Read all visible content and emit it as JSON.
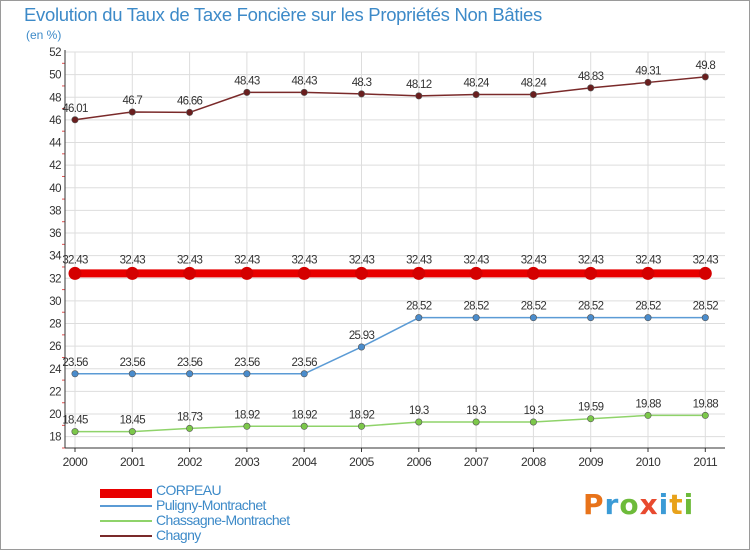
{
  "title": "Evolution du Taux de Taxe Foncière sur les Propriétés Non Bâties",
  "unit": "(en %)",
  "logo": {
    "text": "Proxiti",
    "colors": [
      "#e8731a",
      "#3b9bd6",
      "#6dbb3a",
      "#e84a2f",
      "#3b9bd6",
      "#e8a21a",
      "#6dbb3a"
    ]
  },
  "chart_data": {
    "type": "line",
    "title": "Evolution du Taux de Taxe Foncière sur les Propriétés Non Bâties",
    "ylabel": "(en %)",
    "xlabel": "",
    "x": [
      "2000",
      "2001",
      "2002",
      "2003",
      "2004",
      "2005",
      "2006",
      "2007",
      "2008",
      "2009",
      "2010",
      "2011"
    ],
    "ylim": [
      17,
      52
    ],
    "yticks": [
      18,
      20,
      22,
      24,
      26,
      28,
      30,
      32,
      34,
      36,
      38,
      40,
      42,
      44,
      46,
      48,
      50,
      52
    ],
    "grid": true,
    "legend_position": "bottom-left",
    "series": [
      {
        "name": "CORPEAU",
        "color": "#e80000",
        "values": [
          32.43,
          32.43,
          32.43,
          32.43,
          32.43,
          32.43,
          32.43,
          32.43,
          32.43,
          32.43,
          32.43,
          32.43
        ],
        "labels": [
          "32.43",
          "32.43",
          "32.43",
          "32.43",
          "32.43",
          "32.43",
          "32.43",
          "32.43",
          "32.43",
          "32.43",
          "32.43",
          "32.43"
        ]
      },
      {
        "name": "Puligny-Montrachet",
        "color": "#5b9bd5",
        "values": [
          23.56,
          23.56,
          23.56,
          23.56,
          23.56,
          25.93,
          28.52,
          28.52,
          28.52,
          28.52,
          28.52,
          28.52
        ],
        "labels": [
          "23.56",
          "23.56",
          "23.56",
          "23.56",
          "23.56",
          "25.93",
          "28.52",
          "28.52",
          "28.52",
          "28.52",
          "28.52",
          "28.52"
        ]
      },
      {
        "name": "Chassagne-Montrachet",
        "color": "#8fd36a",
        "values": [
          18.45,
          18.45,
          18.73,
          18.92,
          18.92,
          18.92,
          19.3,
          19.3,
          19.3,
          19.59,
          19.88,
          19.88
        ],
        "labels": [
          "18.45",
          "18.45",
          "18.73",
          "18.92",
          "18.92",
          "18.92",
          "19.3",
          "19.3",
          "19.3",
          "19.59",
          "19.88",
          "19.88"
        ]
      },
      {
        "name": "Chagny",
        "color": "#7a2a2a",
        "values": [
          46.01,
          46.7,
          46.66,
          48.43,
          48.43,
          48.3,
          48.12,
          48.24,
          48.24,
          48.83,
          49.31,
          49.8
        ],
        "labels": [
          "46.01",
          "46.7",
          "46.66",
          "48.43",
          "48.43",
          "48.3",
          "48.12",
          "48.24",
          "48.24",
          "48.83",
          "49.31",
          "49.8"
        ]
      }
    ]
  }
}
